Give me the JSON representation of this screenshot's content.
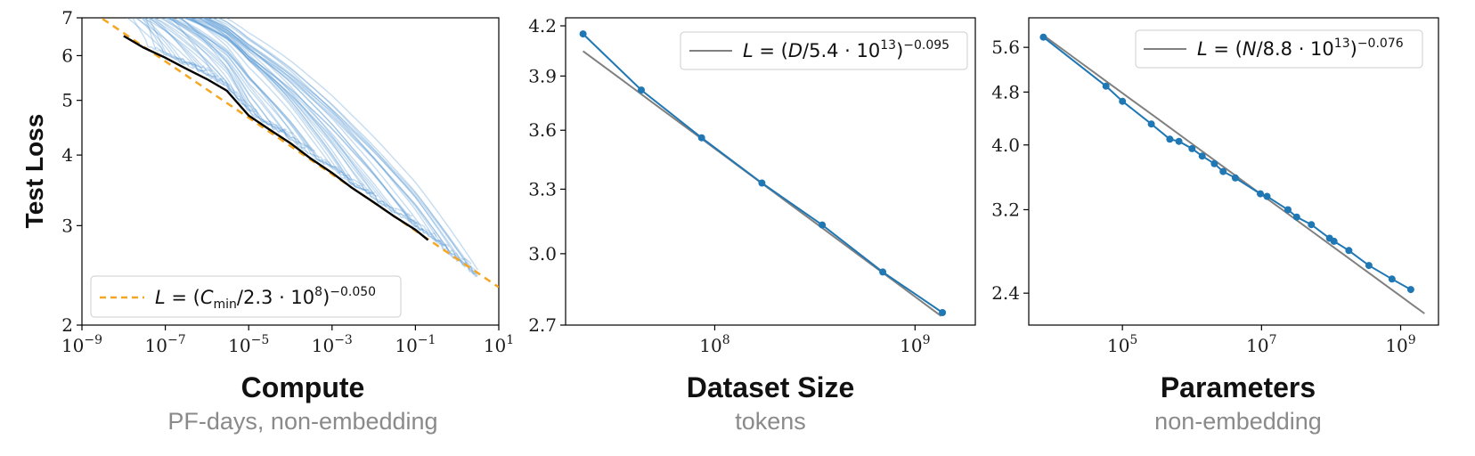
{
  "colors": {
    "curve_light": "#5b9bd5",
    "frontier": "#000000",
    "fit_orange": "#f5a623",
    "series_blue": "#1f77b4",
    "fit_gray": "#808080"
  },
  "chart_data": [
    {
      "type": "line",
      "title": "Compute",
      "subtitle": "PF-days, non-embedding",
      "ylabel": "Test Loss",
      "x_scale": "log",
      "y_scale": "log",
      "xlim": [
        1e-09,
        10
      ],
      "ylim": [
        2,
        7
      ],
      "x_ticks": [
        1e-09,
        1e-07,
        1e-05,
        0.001,
        0.1,
        10
      ],
      "x_tick_labels": [
        [
          "10",
          "−9"
        ],
        [
          "10",
          "−7"
        ],
        [
          "10",
          "−5"
        ],
        [
          "10",
          "−3"
        ],
        [
          "10",
          "−1"
        ],
        [
          "10",
          "1"
        ]
      ],
      "y_ticks": [
        2,
        3,
        4,
        5,
        6,
        7
      ],
      "y_tick_labels": [
        "2",
        "3",
        "4",
        "5",
        "6",
        "7"
      ],
      "legend": {
        "placement": "lower-left",
        "label": "L = (C_min/2.3·10^8)^−0.050"
      },
      "fit": {
        "coef": 230000000.0,
        "exponent": -0.05
      },
      "frontier": {
        "x": [
          1e-08,
          3e-08,
          1e-07,
          3e-07,
          1e-06,
          3e-06,
          1e-05,
          3e-05,
          0.0001,
          0.0003,
          0.001,
          0.003,
          0.01,
          0.03,
          0.1,
          0.2
        ],
        "y": [
          6.5,
          6.2,
          5.95,
          5.7,
          5.45,
          5.2,
          4.7,
          4.45,
          4.2,
          3.95,
          3.72,
          3.5,
          3.3,
          3.12,
          2.95,
          2.83
        ]
      },
      "curves_note": "many faint training curves above the frontier"
    },
    {
      "type": "line",
      "title": "Dataset Size",
      "subtitle": "tokens",
      "x_scale": "log",
      "y_scale": "log",
      "xlim": [
        18000000.0,
        2000000000.0
      ],
      "ylim": [
        2.7,
        4.25
      ],
      "x_ticks": [
        100000000.0,
        1000000000.0
      ],
      "x_tick_labels": [
        [
          "10",
          "8"
        ],
        [
          "10",
          "9"
        ]
      ],
      "y_ticks": [
        2.7,
        3.0,
        3.3,
        3.6,
        3.9,
        4.2
      ],
      "y_tick_labels": [
        "2.7",
        "3.0",
        "3.3",
        "3.6",
        "3.9",
        "4.2"
      ],
      "legend": {
        "placement": "top-right",
        "label": "L = (D/5.4·10^13)^−0.095"
      },
      "fit": {
        "coef": 54000000000000.0,
        "exponent": -0.095,
        "x_range": [
          22000000.0,
          1350000000.0
        ]
      },
      "series": [
        {
          "x": [
            22000000.0,
            43000000.0,
            86000000.0,
            172000000.0,
            344000000.0,
            690000000.0,
            1370000000.0
          ],
          "y": [
            4.15,
            3.82,
            3.56,
            3.33,
            3.13,
            2.92,
            2.75
          ]
        }
      ]
    },
    {
      "type": "line",
      "title": "Parameters",
      "subtitle": "non-embedding",
      "x_scale": "log",
      "y_scale": "log",
      "xlim": [
        4500.0,
        3500000000.0
      ],
      "ylim": [
        2.15,
        6.2
      ],
      "x_ticks": [
        100000.0,
        10000000.0,
        1000000000.0
      ],
      "x_tick_labels": [
        [
          "10",
          "5"
        ],
        [
          "10",
          "7"
        ],
        [
          "10",
          "9"
        ]
      ],
      "y_ticks": [
        2.4,
        3.2,
        4.0,
        4.8,
        5.6
      ],
      "y_tick_labels": [
        "2.4",
        "3.2",
        "4.0",
        "4.8",
        "5.6"
      ],
      "legend": {
        "placement": "top-right",
        "label": "L = (N/8.8·10^13)^−0.076"
      },
      "fit": {
        "coef": 88000000000000.0,
        "exponent": -0.076,
        "x_range": [
          7000.0,
          2200000000.0
        ]
      },
      "series": [
        {
          "x": [
            7300.0,
            58000.0,
            100000.0,
            260000.0,
            480000.0,
            650000.0,
            1000000.0,
            1400000.0,
            2100000.0,
            2800000.0,
            4200000.0,
            9600000.0,
            12000000.0,
            24000000.0,
            32000000.0,
            52000000.0,
            95000000.0,
            110000000.0,
            180000000.0,
            350000000.0,
            750000000.0,
            1400000000.0
          ],
          "y": [
            5.8,
            4.9,
            4.65,
            4.3,
            4.08,
            4.05,
            3.95,
            3.85,
            3.75,
            3.65,
            3.57,
            3.38,
            3.35,
            3.2,
            3.12,
            3.04,
            2.9,
            2.87,
            2.78,
            2.64,
            2.52,
            2.43
          ]
        }
      ]
    }
  ]
}
